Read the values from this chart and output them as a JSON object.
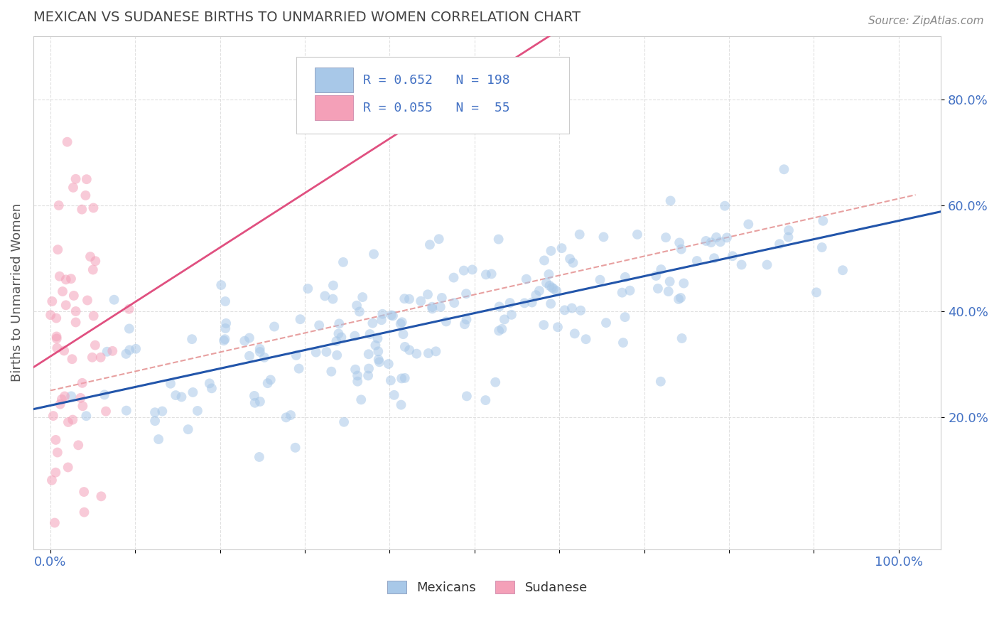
{
  "title": "MEXICAN VS SUDANESE BIRTHS TO UNMARRIED WOMEN CORRELATION CHART",
  "source": "Source: ZipAtlas.com",
  "ylabel": "Births to Unmarried Women",
  "xlim": [
    -0.02,
    1.05
  ],
  "ylim": [
    -0.05,
    0.92
  ],
  "mexican_color": "#a8c8e8",
  "sudanese_color": "#f4a0b8",
  "mexican_R": 0.652,
  "mexican_N": 198,
  "sudanese_R": 0.055,
  "sudanese_N": 55,
  "mexican_line_color": "#2255aa",
  "sudanese_line_color": "#e05080",
  "dashed_line_color": "#e08080",
  "background_color": "#ffffff",
  "grid_color": "#dddddd",
  "title_color": "#444444",
  "axis_tick_color": "#4472c4",
  "legend_R_N_color": "#4472c4",
  "marker_size": 10,
  "marker_alpha": 0.55,
  "seed": 77
}
